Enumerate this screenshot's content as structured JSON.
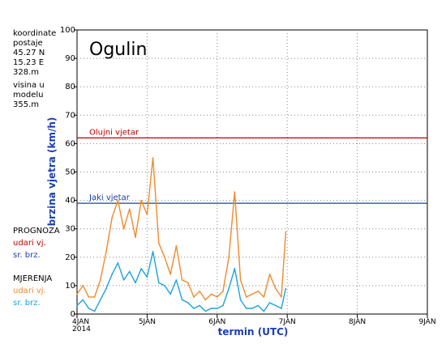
{
  "station": {
    "name": "Ogulin",
    "info_lines": [
      "koordinate",
      "postaje",
      "45.27  N",
      "15.23  E",
      "328.m",
      "visina  u",
      "modelu",
      "355.m"
    ]
  },
  "legend": {
    "forecast_title": "PROGNOZA",
    "forecast_gust": "udari vj.",
    "forecast_mean": "sr. brz.",
    "measured_title": "MJERENJA",
    "measured_gust": "udari vj.",
    "measured_mean": "sr. brz."
  },
  "colors": {
    "forecast_gust": "#c00000",
    "forecast_mean": "#1a3fb0",
    "measured_gust": "#f08a2c",
    "measured_mean": "#1aa3dd",
    "ylabel": "#1a3fb0",
    "xlabel": "#1a3fb0"
  },
  "chart_data": {
    "type": "line",
    "title": "Ogulin",
    "xlabel": "termin (UTC)",
    "ylabel": "brzina vjetra (km/h)",
    "x_ticks": [
      "4JAN\n2014",
      "5JAN",
      "6JAN",
      "7JAN",
      "8JAN",
      "9JAN"
    ],
    "xlim": [
      0,
      120
    ],
    "x_unit": "hours from 4JAN 2014 00 UTC",
    "ylim": [
      0,
      100
    ],
    "y_ticks": [
      0,
      10,
      20,
      30,
      40,
      50,
      60,
      70,
      80,
      90,
      100
    ],
    "grid": true,
    "thresholds": [
      {
        "label": "Olujni vjetar",
        "value": 62,
        "color": "#c00000"
      },
      {
        "label": "Jaki vjetar",
        "value": 39,
        "color": "#1a3fb0"
      }
    ],
    "series": [
      {
        "name": "MJERENJA udari vj.",
        "color": "#f08a2c",
        "x": [
          0,
          2,
          4,
          6,
          8,
          10,
          12,
          14,
          16,
          18,
          20,
          22,
          24,
          26,
          28,
          30,
          32,
          34,
          36,
          38,
          40,
          42,
          44,
          46,
          48,
          50,
          52,
          54,
          56,
          58,
          60,
          62,
          64,
          66,
          68,
          70,
          71.5
        ],
        "y": [
          7,
          10,
          6,
          6,
          12,
          22,
          34,
          40,
          30,
          37,
          27,
          40,
          35,
          55,
          25,
          20,
          14,
          24,
          12,
          11,
          6,
          8,
          5,
          7,
          6,
          8,
          20,
          43,
          12,
          6,
          7,
          8,
          6,
          14,
          9,
          6,
          29
        ]
      },
      {
        "name": "MJERENJA sr. brz.",
        "color": "#1aa3dd",
        "x": [
          0,
          2,
          4,
          6,
          8,
          10,
          12,
          14,
          16,
          18,
          20,
          22,
          24,
          26,
          28,
          30,
          32,
          34,
          36,
          38,
          40,
          42,
          44,
          46,
          48,
          50,
          52,
          54,
          56,
          58,
          60,
          62,
          64,
          66,
          68,
          70,
          71.5
        ],
        "y": [
          3,
          5,
          2,
          1,
          5,
          9,
          14,
          18,
          12,
          15,
          11,
          16,
          13,
          22,
          11,
          10,
          7,
          12,
          5,
          4,
          2,
          3,
          1,
          2,
          2,
          3,
          9,
          16,
          5,
          2,
          2,
          3,
          1,
          4,
          3,
          2,
          9
        ]
      }
    ]
  }
}
